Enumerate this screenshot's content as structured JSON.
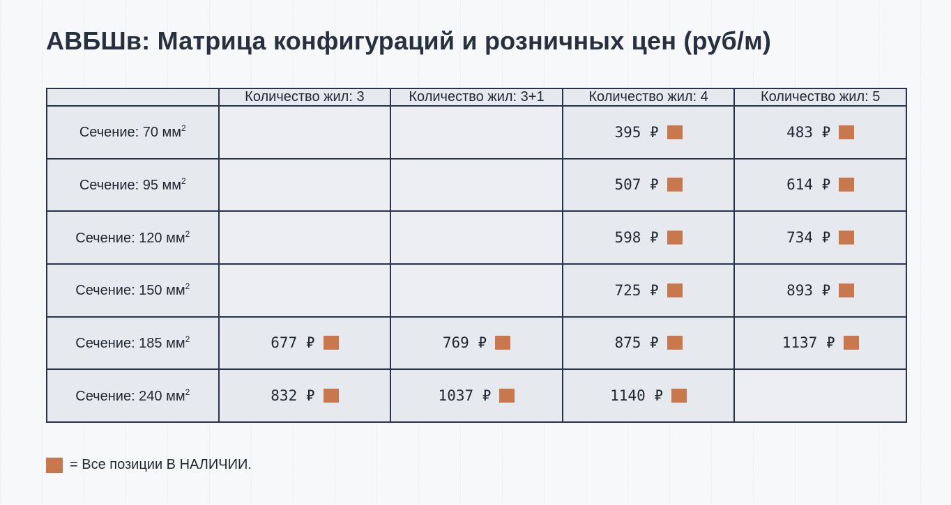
{
  "title": "АВБШв: Матрица конфигураций и розничных цен (руб/м)",
  "columns": [
    "Количество жил: 3",
    "Количество жил: 3+1",
    "Количество жил: 4",
    "Количество жил: 5"
  ],
  "rows": [
    {
      "label": "Сечение: 70 мм",
      "sup": "2",
      "cells": [
        null,
        null,
        "395 ₽",
        "483 ₽"
      ]
    },
    {
      "label": "Сечение: 95 мм",
      "sup": "2",
      "cells": [
        null,
        null,
        "507 ₽",
        "614 ₽"
      ]
    },
    {
      "label": "Сечение: 120 мм",
      "sup": "2",
      "cells": [
        null,
        null,
        "598 ₽",
        "734 ₽"
      ]
    },
    {
      "label": "Сечение: 150 мм",
      "sup": "2",
      "cells": [
        null,
        null,
        "725 ₽",
        "893 ₽"
      ]
    },
    {
      "label": "Сечение: 185 мм",
      "sup": "2",
      "cells": [
        "677 ₽",
        "769 ₽",
        "875 ₽",
        "1137 ₽"
      ]
    },
    {
      "label": "Сечение: 240 мм",
      "sup": "2",
      "cells": [
        "832 ₽",
        "1037 ₽",
        "1140 ₽",
        null
      ]
    }
  ],
  "legend": {
    "text": "= Все позиции В НАЛИЧИИ.",
    "icon": "in-stock-square"
  },
  "colors": {
    "in_stock": "#c9784e",
    "border": "#26334a",
    "cell_bg": "#e6e9ee"
  }
}
